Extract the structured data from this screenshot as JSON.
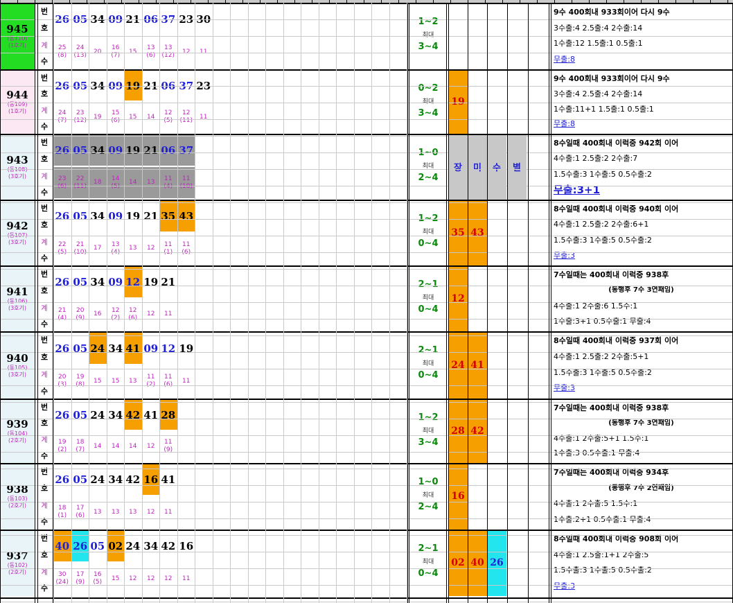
{
  "rows": [
    {
      "round": "945",
      "sub1": "(동110)",
      "sub2": "(1호기)",
      "bg": "#22dd22",
      "nums": [
        {
          "v": "26",
          "c": "blue"
        },
        {
          "v": "05",
          "c": "blue"
        },
        {
          "v": "34",
          "c": "black"
        },
        {
          "v": "09",
          "c": "blue"
        },
        {
          "v": "21",
          "c": "black"
        },
        {
          "v": "06",
          "c": "blue"
        },
        {
          "v": "37",
          "c": "blue"
        },
        {
          "v": "23",
          "c": "black"
        },
        {
          "v": "30",
          "c": "black"
        }
      ],
      "counts": [
        [
          "25",
          "(8)"
        ],
        [
          "24",
          "(13)"
        ],
        [
          "20",
          ""
        ],
        [
          "16",
          "(7)"
        ],
        [
          "15",
          ""
        ],
        [
          "13",
          "(6)"
        ],
        [
          "13",
          "(12)"
        ],
        [
          "12",
          ""
        ],
        [
          "11",
          ""
        ]
      ],
      "pattern": "1~2",
      "max": "최대",
      "max_range": "3~4",
      "big": [],
      "note": [
        "9수 400회내 933회이어 다시 9수",
        "3수출:4  2.5출:4  2수출:14",
        "1수출:12  1.5출:1  0.5출:1",
        "무출:8"
      ]
    },
    {
      "round": "944",
      "sub1": "(동109)",
      "sub2": "(1호기)",
      "bg": "#fbe8f2",
      "nums": [
        {
          "v": "26",
          "c": "blue"
        },
        {
          "v": "05",
          "c": "blue"
        },
        {
          "v": "34",
          "c": "black"
        },
        {
          "v": "09",
          "c": "blue"
        },
        {
          "v": "19",
          "c": "black",
          "hl": "#f5a000"
        },
        {
          "v": "21",
          "c": "black"
        },
        {
          "v": "06",
          "c": "blue"
        },
        {
          "v": "37",
          "c": "blue"
        },
        {
          "v": "23",
          "c": "black"
        }
      ],
      "counts": [
        [
          "24",
          "(7)"
        ],
        [
          "23",
          "(12)"
        ],
        [
          "19",
          ""
        ],
        [
          "15",
          "(6)"
        ],
        [
          "15",
          ""
        ],
        [
          "14",
          ""
        ],
        [
          "12",
          "(5)"
        ],
        [
          "12",
          "(11)"
        ],
        [
          "11",
          ""
        ]
      ],
      "pattern": "0~2",
      "max": "최대",
      "max_range": "3~4",
      "big": [
        {
          "v": "19",
          "bg": "#f5a000"
        }
      ],
      "note": [
        "9수 400회내 933회이어 다시 9수",
        "3수출:4  2.5출:4  2수출:14",
        "1수출:11+1  1.5출:1  0.5출:1",
        "무출:8"
      ]
    },
    {
      "round": "943",
      "sub1": "(동108)",
      "sub2": "(3호기)",
      "bg": "#e8f4f8",
      "shade": true,
      "nums": [
        {
          "v": "26",
          "c": "blue"
        },
        {
          "v": "05",
          "c": "blue"
        },
        {
          "v": "34",
          "c": "black"
        },
        {
          "v": "09",
          "c": "blue"
        },
        {
          "v": "19",
          "c": "black"
        },
        {
          "v": "21",
          "c": "black"
        },
        {
          "v": "06",
          "c": "blue"
        },
        {
          "v": "37",
          "c": "blue"
        }
      ],
      "counts": [
        [
          "23",
          "(6)"
        ],
        [
          "22",
          "(11)"
        ],
        [
          "18",
          ""
        ],
        [
          "14",
          "(5)"
        ],
        [
          "14",
          ""
        ],
        [
          "13",
          ""
        ],
        [
          "11",
          "(4)"
        ],
        [
          "11",
          "(10)"
        ]
      ],
      "pattern": "1~0",
      "max": "최대",
      "max_range": "2~4",
      "big": [
        {
          "v": "장",
          "bg": "#c8c8c8"
        },
        {
          "v": "미",
          "bg": "#c8c8c8"
        },
        {
          "v": "수",
          "bg": "#c8c8c8"
        },
        {
          "v": "별",
          "bg": "#c8c8c8"
        }
      ],
      "note": [
        "8수일때 400회내 이럭중 942회 이어",
        "4수출:1  2.5출:2  2수출:7",
        "1.5수출:3  1수출:5  0.5수출:2",
        "무출:3+1"
      ]
    },
    {
      "round": "942",
      "sub1": "(동107)",
      "sub2": "(3호기)",
      "bg": "#e8f4f8",
      "nums": [
        {
          "v": "26",
          "c": "blue"
        },
        {
          "v": "05",
          "c": "blue"
        },
        {
          "v": "34",
          "c": "black"
        },
        {
          "v": "09",
          "c": "blue"
        },
        {
          "v": "19",
          "c": "black"
        },
        {
          "v": "21",
          "c": "black"
        },
        {
          "v": "35",
          "c": "black",
          "hl": "#f5a000"
        },
        {
          "v": "43",
          "c": "black",
          "hl": "#f5a000"
        }
      ],
      "counts": [
        [
          "22",
          "(5)"
        ],
        [
          "21",
          "(10)"
        ],
        [
          "17",
          ""
        ],
        [
          "13",
          "(4)"
        ],
        [
          "13",
          ""
        ],
        [
          "12",
          ""
        ],
        [
          "11",
          "(1)"
        ],
        [
          "11",
          "(6)"
        ]
      ],
      "pattern": "1~2",
      "max": "최대",
      "max_range": "0~4",
      "big": [
        {
          "v": "35",
          "bg": "#f5a000"
        },
        {
          "v": "43",
          "bg": "#f5a000"
        }
      ],
      "note": [
        "8수일때 400회내 이럭중 940회 이어",
        "4수출:1  2.5출:2  2수출:6+1",
        "1.5수출:3  1수출:5  0.5수출:2",
        "무출:3"
      ]
    },
    {
      "round": "941",
      "sub1": "(동106)",
      "sub2": "(3호기)",
      "bg": "#e8f4f8",
      "nums": [
        {
          "v": "26",
          "c": "blue"
        },
        {
          "v": "05",
          "c": "blue"
        },
        {
          "v": "34",
          "c": "black"
        },
        {
          "v": "09",
          "c": "blue"
        },
        {
          "v": "12",
          "c": "blue",
          "hl": "#f5a000"
        },
        {
          "v": "19",
          "c": "black"
        },
        {
          "v": "21",
          "c": "black"
        }
      ],
      "counts": [
        [
          "21",
          "(4)"
        ],
        [
          "20",
          "(9)"
        ],
        [
          "16",
          ""
        ],
        [
          "12",
          "(2)"
        ],
        [
          "12",
          "(6)"
        ],
        [
          "12",
          ""
        ],
        [
          "11",
          ""
        ]
      ],
      "pattern": "2~1",
      "max": "최대",
      "max_range": "0~4",
      "big": [
        {
          "v": "12",
          "bg": "#f5a000"
        }
      ],
      "note": [
        "7수일때는 400회내 이럭중 938후",
        "(동행후 7수 3연패임)",
        "4수출:1  2수출:6  1.5수:1",
        "1수출:3+1  0.5수출:1  무출:4"
      ]
    },
    {
      "round": "940",
      "sub1": "(동105)",
      "sub2": "(3호기)",
      "bg": "#e8f4f8",
      "nums": [
        {
          "v": "26",
          "c": "blue"
        },
        {
          "v": "05",
          "c": "blue"
        },
        {
          "v": "24",
          "c": "black",
          "hl": "#f5a000"
        },
        {
          "v": "34",
          "c": "black"
        },
        {
          "v": "41",
          "c": "black",
          "hl": "#f5a000"
        },
        {
          "v": "09",
          "c": "blue"
        },
        {
          "v": "12",
          "c": "blue"
        },
        {
          "v": "19",
          "c": "black"
        }
      ],
      "counts": [
        [
          "20",
          "(3)"
        ],
        [
          "19",
          "(8)"
        ],
        [
          "15",
          ""
        ],
        [
          "15",
          ""
        ],
        [
          "13",
          ""
        ],
        [
          "11",
          "(2)"
        ],
        [
          "11",
          "(6)"
        ],
        [
          "11",
          ""
        ]
      ],
      "pattern": "2~1",
      "max": "최대",
      "max_range": "0~4",
      "big": [
        {
          "v": "24",
          "bg": "#f5a000"
        },
        {
          "v": "41",
          "bg": "#f5a000"
        }
      ],
      "note": [
        "8수일때 400회내 이럭중 937회 이어",
        "4수출:1  2.5출:2  2수출:5+1",
        "1.5수출:3  1수출:5  0.5수출:2",
        "무출:3"
      ]
    },
    {
      "round": "939",
      "sub1": "(동104)",
      "sub2": "(2호기)",
      "bg": "#e8f4f8",
      "nums": [
        {
          "v": "26",
          "c": "blue"
        },
        {
          "v": "05",
          "c": "blue"
        },
        {
          "v": "24",
          "c": "black"
        },
        {
          "v": "34",
          "c": "black"
        },
        {
          "v": "42",
          "c": "black",
          "hl": "#f5a000"
        },
        {
          "v": "41",
          "c": "black"
        },
        {
          "v": "28",
          "c": "black",
          "hl": "#f5a000"
        }
      ],
      "counts": [
        [
          "19",
          "(2)"
        ],
        [
          "18",
          "(7)"
        ],
        [
          "14",
          ""
        ],
        [
          "14",
          ""
        ],
        [
          "14",
          ""
        ],
        [
          "12",
          ""
        ],
        [
          "11",
          "(9)"
        ]
      ],
      "pattern": "1~2",
      "max": "최대",
      "max_range": "3~4",
      "big": [
        {
          "v": "28",
          "bg": "#f5a000"
        },
        {
          "v": "42",
          "bg": "#f5a000"
        }
      ],
      "note": [
        "7수일때는 400회내 이럭중 938후",
        "(동행후 7수 3연패임)",
        "4수출:1  2수출:5+1  1.5수:1",
        "1수출:3  0.5수출:1  무출:4"
      ]
    },
    {
      "round": "938",
      "sub1": "(동103)",
      "sub2": "(2호기)",
      "bg": "#e8f4f8",
      "nums": [
        {
          "v": "26",
          "c": "blue"
        },
        {
          "v": "05",
          "c": "blue"
        },
        {
          "v": "24",
          "c": "black"
        },
        {
          "v": "34",
          "c": "black"
        },
        {
          "v": "42",
          "c": "black"
        },
        {
          "v": "16",
          "c": "black",
          "hl": "#f5a000"
        },
        {
          "v": "41",
          "c": "black"
        }
      ],
      "counts": [
        [
          "18",
          "(1)"
        ],
        [
          "17",
          "(6)"
        ],
        [
          "13",
          ""
        ],
        [
          "13",
          ""
        ],
        [
          "13",
          ""
        ],
        [
          "12",
          ""
        ],
        [
          "11",
          ""
        ]
      ],
      "pattern": "1~0",
      "max": "최대",
      "max_range": "2~4",
      "big": [
        {
          "v": "16",
          "bg": "#f5a000"
        }
      ],
      "note": [
        "7수일때는 400회내 이럭중 934후",
        "(동행후 7수 2연패임)",
        "4수출:1  2수출:5  1.5수:1",
        "1수출:2+1  0.5수출:1  무출:4"
      ]
    },
    {
      "round": "937",
      "sub1": "(동102)",
      "sub2": "(2호기)",
      "bg": "#e8f4f8",
      "nums": [
        {
          "v": "40",
          "c": "blue",
          "hl": "#f5a000"
        },
        {
          "v": "26",
          "c": "blue",
          "hl": "#22e5ee"
        },
        {
          "v": "05",
          "c": "blue"
        },
        {
          "v": "02",
          "c": "black",
          "hl": "#f5a000"
        },
        {
          "v": "24",
          "c": "black"
        },
        {
          "v": "34",
          "c": "black"
        },
        {
          "v": "42",
          "c": "black"
        },
        {
          "v": "16",
          "c": "black"
        }
      ],
      "counts": [
        [
          "30",
          "(24)"
        ],
        [
          "17",
          "(9)"
        ],
        [
          "16",
          "(5)"
        ],
        [
          "15",
          ""
        ],
        [
          "12",
          ""
        ],
        [
          "12",
          ""
        ],
        [
          "12",
          ""
        ],
        [
          "11",
          ""
        ]
      ],
      "pattern": "2~1",
      "max": "최대",
      "max_range": "0~4",
      "big": [
        {
          "v": "02",
          "bg": "#f5a000"
        },
        {
          "v": "40",
          "bg": "#f5a000"
        },
        {
          "v": "26",
          "bg": "#22e5ee"
        }
      ],
      "note": [
        "8수일때 400회내 이럭중 908회 이어",
        "4수출:1  2.5출:1+1  2수출:5",
        "1.5수출:3  1수출:5  0.5수출:2",
        "무출:3"
      ]
    }
  ],
  "labels": {
    "bun": "번",
    "ho": "호",
    "gye": "계",
    "su": "수"
  }
}
